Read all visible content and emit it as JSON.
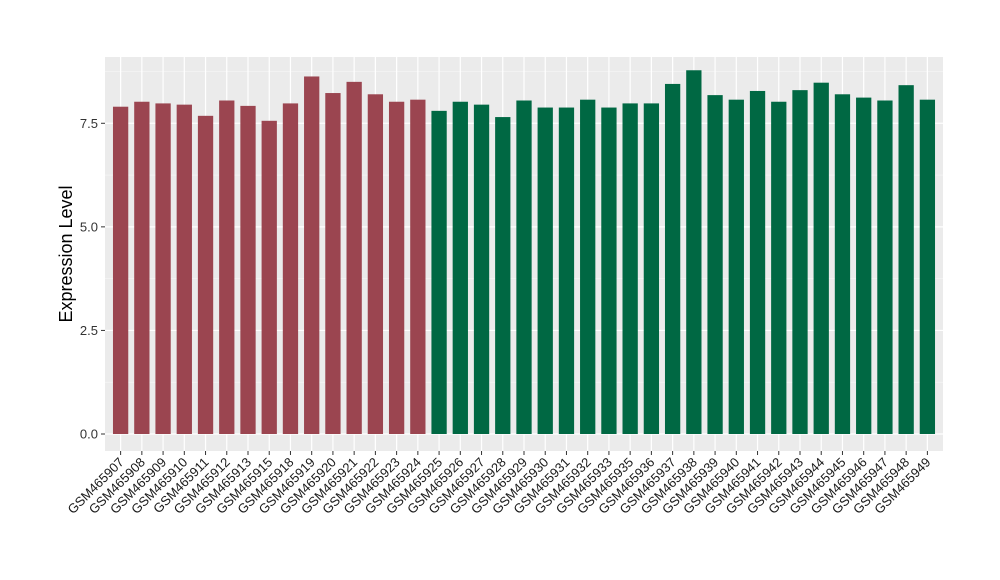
{
  "chart_data": {
    "type": "bar",
    "title": "",
    "xlabel": "",
    "ylabel": "Expression Level",
    "ylim": [
      0,
      9.1
    ],
    "yticks": [
      0.0,
      2.5,
      5.0,
      7.5
    ],
    "ytick_labels": [
      "0.0",
      "2.5",
      "5.0",
      "7.5"
    ],
    "grid": true,
    "panel_background": "#ebebeb",
    "categories": [
      "GSM465907",
      "GSM465908",
      "GSM465909",
      "GSM465910",
      "GSM465911",
      "GSM465912",
      "GSM465913",
      "GSM465915",
      "GSM465918",
      "GSM465919",
      "GSM465920",
      "GSM465921",
      "GSM465922",
      "GSM465923",
      "GSM465924",
      "GSM465925",
      "GSM465926",
      "GSM465927",
      "GSM465928",
      "GSM465929",
      "GSM465930",
      "GSM465931",
      "GSM465932",
      "GSM465933",
      "GSM465935",
      "GSM465936",
      "GSM465937",
      "GSM465938",
      "GSM465939",
      "GSM465940",
      "GSM465941",
      "GSM465942",
      "GSM465943",
      "GSM465944",
      "GSM465945",
      "GSM465946",
      "GSM465947",
      "GSM465948",
      "GSM465949"
    ],
    "values": [
      7.9,
      8.02,
      7.98,
      7.95,
      7.68,
      8.05,
      7.92,
      7.56,
      7.98,
      8.63,
      8.23,
      8.5,
      8.2,
      8.02,
      8.07,
      7.8,
      8.02,
      7.95,
      7.65,
      8.05,
      7.88,
      7.88,
      8.07,
      7.88,
      7.98,
      7.98,
      8.45,
      8.78,
      8.18,
      8.07,
      8.28,
      8.02,
      8.3,
      8.48,
      8.2,
      8.12,
      8.05,
      8.42,
      8.07
    ],
    "groups": [
      "a",
      "a",
      "a",
      "a",
      "a",
      "a",
      "a",
      "a",
      "a",
      "a",
      "a",
      "a",
      "a",
      "a",
      "a",
      "b",
      "b",
      "b",
      "b",
      "b",
      "b",
      "b",
      "b",
      "b",
      "b",
      "b",
      "b",
      "b",
      "b",
      "b",
      "b",
      "b",
      "b",
      "b",
      "b",
      "b",
      "b",
      "b",
      "b"
    ],
    "group_colors": {
      "a": "#9b4550",
      "b": "#006843"
    }
  }
}
